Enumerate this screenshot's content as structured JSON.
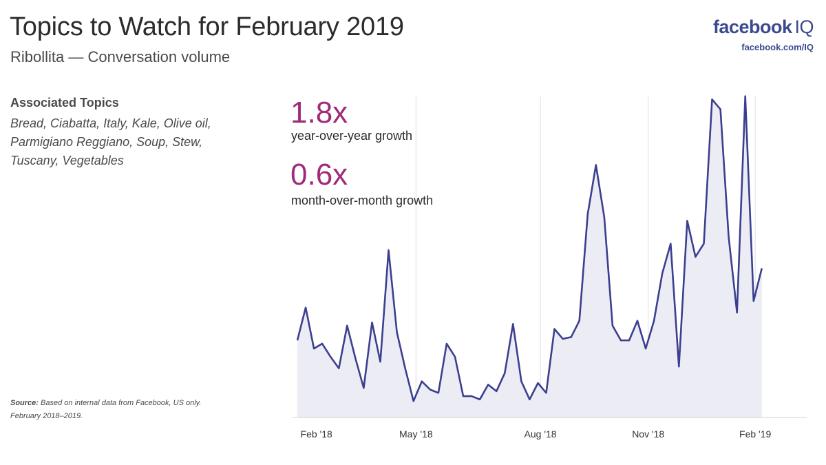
{
  "header": {
    "title": "Topics to Watch for February 2019",
    "subtitle": "Ribollita — Conversation volume"
  },
  "brand": {
    "logo_word": "facebook",
    "logo_suffix": "IQ",
    "url": "facebook.com/IQ",
    "color": "#3b4a8f"
  },
  "associated": {
    "title": "Associated Topics",
    "body": "Bread, Ciabatta, Italy, Kale, Olive oil, Parmigiano Reggiano, Soup, Stew, Tuscany, Vegetables"
  },
  "stats": [
    {
      "value": "1.8x",
      "label": "year-over-year growth"
    },
    {
      "value": "0.6x",
      "label": "month-over-month growth"
    }
  ],
  "source": {
    "label": "Source:",
    "text": "Based on internal data from Facebook, US only. February 2018–2019."
  },
  "colors": {
    "accent": "#a02a7a",
    "line": "#3b3f8f",
    "area": "#ecedf4",
    "gridline": "#dddddd"
  },
  "chart_data": {
    "type": "area",
    "title": "",
    "xlabel": "",
    "ylabel": "",
    "x_ticks": [
      "Feb '18",
      "May '18",
      "Aug '18",
      "Nov '18",
      "Feb '19"
    ],
    "gridlines_at_ticks": [
      false,
      true,
      true,
      true,
      true
    ],
    "ylim": [
      0,
      100
    ],
    "series": [
      {
        "values": [
          23.5,
          33.5,
          21,
          22.5,
          18.5,
          15,
          28,
          18,
          9,
          29,
          17,
          51,
          26,
          15,
          5,
          11,
          8.5,
          7.5,
          22.5,
          18.5,
          6.5,
          6.5,
          5.5,
          10,
          8,
          13.5,
          28.5,
          11,
          5.5,
          10.5,
          7.5,
          27,
          24,
          24.5,
          29.5,
          62,
          77,
          61,
          28,
          23.5,
          23.5,
          29.5,
          21,
          29.5,
          44,
          53,
          15.5,
          60,
          49,
          53,
          97,
          94,
          55,
          32,
          98,
          35.5,
          45.5
        ]
      }
    ]
  }
}
